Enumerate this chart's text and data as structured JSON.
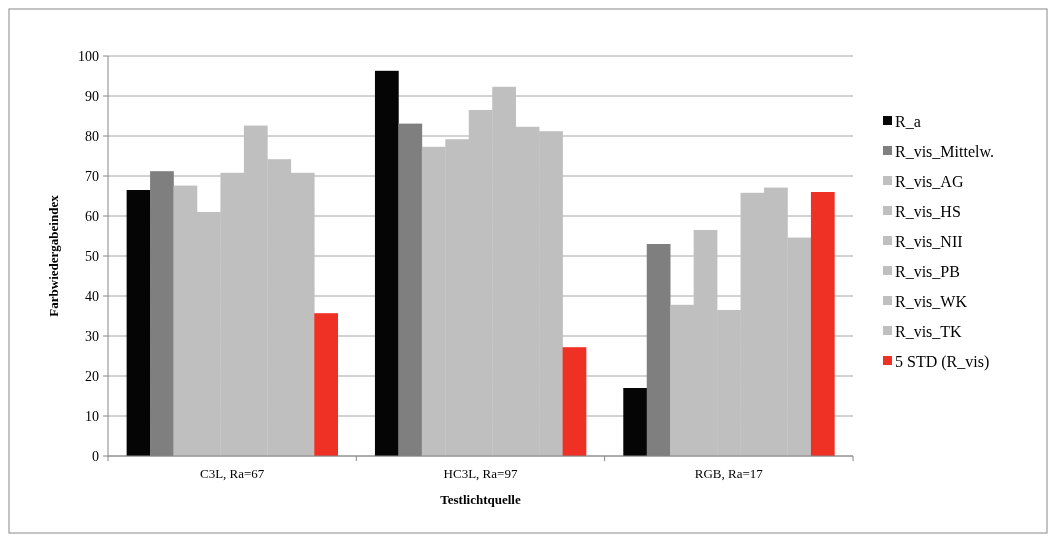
{
  "chart_data": {
    "type": "bar",
    "xlabel": "Testlichtquelle",
    "ylabel": "Farbwiedergabeindex",
    "categories": [
      "C3L, Ra=67",
      "HC3L, Ra=97",
      "RGB, Ra=17"
    ],
    "series": [
      {
        "name": "R_a",
        "color": "#050505",
        "values": [
          66.5,
          96.3,
          17
        ]
      },
      {
        "name": "R_vis_Mittelw.",
        "color": "#7f7f7f",
        "values": [
          71.2,
          83.1,
          53
        ]
      },
      {
        "name": "R_vis_AG",
        "color": "#bfbfbf",
        "values": [
          67.6,
          77.3,
          37.8
        ]
      },
      {
        "name": "R_vis_HS",
        "color": "#bfbfbf",
        "values": [
          61,
          79.2,
          56.5
        ]
      },
      {
        "name": "R_vis_NII",
        "color": "#bfbfbf",
        "values": [
          70.8,
          86.5,
          36.5
        ]
      },
      {
        "name": "R_vis_PB",
        "color": "#bfbfbf",
        "values": [
          82.6,
          92.3,
          65.8
        ]
      },
      {
        "name": "R_vis_WK",
        "color": "#bfbfbf",
        "values": [
          74.2,
          82.3,
          67.1
        ]
      },
      {
        "name": "R_vis_TK",
        "color": "#bfbfbf",
        "values": [
          70.8,
          81.2,
          54.6
        ]
      },
      {
        "name": "5 STD (R_vis)",
        "color": "#ee3124",
        "values": [
          35.7,
          27.2,
          66
        ]
      }
    ],
    "ylim": [
      0,
      100
    ],
    "yticks": [
      0,
      10,
      20,
      30,
      40,
      50,
      60,
      70,
      80,
      90,
      100
    ],
    "grid": "y",
    "legend": "right"
  }
}
